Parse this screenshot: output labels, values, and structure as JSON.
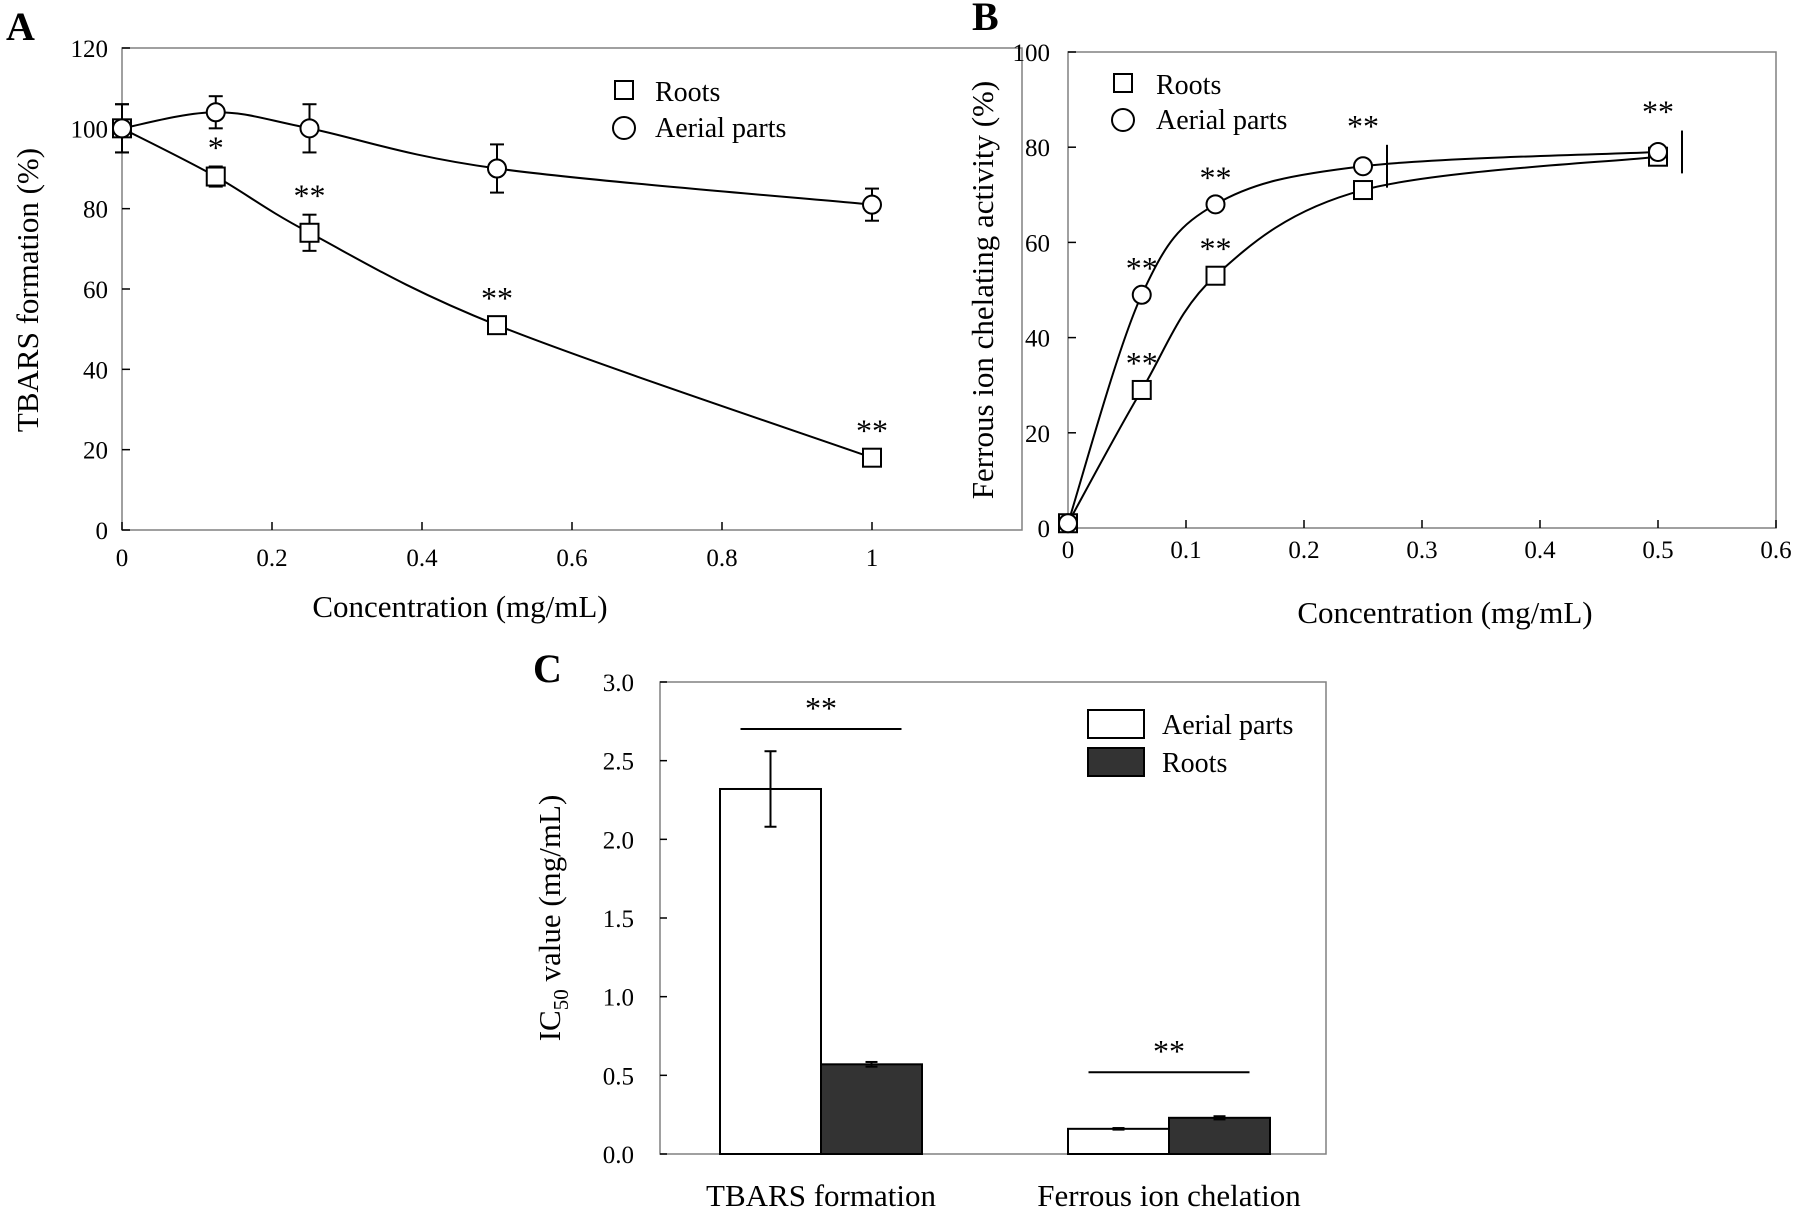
{
  "chart_data": [
    {
      "panel": "A",
      "type": "line",
      "xlabel": "Concentration (mg/mL)",
      "ylabel": "TBARS formation (%)",
      "xlim": [
        0,
        1.2
      ],
      "ylim": [
        0,
        120
      ],
      "xticks": [
        "0",
        "0.2",
        "0.4",
        "0.6",
        "0.8",
        "1"
      ],
      "xtick_values": [
        0,
        0.2,
        0.4,
        0.6,
        0.8,
        1.0
      ],
      "yticks": [
        "0",
        "20",
        "40",
        "60",
        "80",
        "100",
        "120"
      ],
      "ytick_values": [
        0,
        20,
        40,
        60,
        80,
        100,
        120
      ],
      "series": [
        {
          "name": "Roots",
          "marker": "square",
          "x": [
            0,
            0.125,
            0.25,
            0.5,
            1.0
          ],
          "y": [
            100,
            88,
            74,
            51,
            18
          ],
          "err": [
            6,
            2.5,
            4.5,
            2,
            0.5
          ],
          "sig": [
            "",
            "*",
            "**",
            "**",
            "**"
          ]
        },
        {
          "name": "Aerial parts",
          "marker": "circle",
          "x": [
            0,
            0.125,
            0.25,
            0.5,
            1.0
          ],
          "y": [
            100,
            104,
            100,
            90,
            81
          ],
          "err": [
            6,
            4,
            6,
            6,
            4
          ],
          "sig": [
            "",
            "",
            "",
            "",
            ""
          ]
        }
      ],
      "legend": [
        "Roots",
        "Aerial parts"
      ]
    },
    {
      "panel": "B",
      "type": "line",
      "xlabel": "Concentration (mg/mL)",
      "ylabel": "Ferrous ion chelating activity (%)",
      "xlim": [
        0,
        0.6
      ],
      "ylim": [
        0,
        100
      ],
      "xticks": [
        "0",
        "0.1",
        "0.2",
        "0.3",
        "0.4",
        "0.5",
        "0.6"
      ],
      "xtick_values": [
        0,
        0.1,
        0.2,
        0.3,
        0.4,
        0.5,
        0.6
      ],
      "yticks": [
        "0",
        "20",
        "40",
        "60",
        "80",
        "100"
      ],
      "ytick_values": [
        0,
        20,
        40,
        60,
        80,
        100
      ],
      "series": [
        {
          "name": "Roots",
          "marker": "square",
          "x": [
            0,
            0.0625,
            0.125,
            0.25,
            0.5
          ],
          "y": [
            1,
            29,
            53,
            71,
            78
          ],
          "err": [
            0,
            0,
            0,
            0,
            0
          ],
          "sig": [
            "",
            "**",
            "**",
            "",
            ""
          ]
        },
        {
          "name": "Aerial parts",
          "marker": "circle",
          "x": [
            0,
            0.0625,
            0.125,
            0.25,
            0.5
          ],
          "y": [
            1,
            49,
            68,
            76,
            79
          ],
          "err": [
            0,
            0,
            0,
            4.5,
            4.5
          ],
          "sig": [
            "",
            "**",
            "**",
            "**",
            "**"
          ]
        }
      ],
      "legend": [
        "Roots",
        "Aerial parts"
      ]
    },
    {
      "panel": "C",
      "type": "bar",
      "xlabel": "",
      "ylabel_main": "IC",
      "ylabel_sub": "50",
      "ylabel_rest": " value  (mg/mL)",
      "ylim": [
        0,
        3.0
      ],
      "yticks": [
        "0.0",
        "0.5",
        "1.0",
        "1.5",
        "2.0",
        "2.5",
        "3.0"
      ],
      "ytick_values": [
        0,
        0.5,
        1.0,
        1.5,
        2.0,
        2.5,
        3.0
      ],
      "categories": [
        "TBARS formation",
        "Ferrous ion chelation"
      ],
      "series": [
        {
          "name": "Aerial parts",
          "color": "#ffffff",
          "values": [
            2.32,
            0.16
          ],
          "err": [
            0.24,
            0.005
          ]
        },
        {
          "name": "Roots",
          "color": "#333333",
          "values": [
            0.57,
            0.23
          ],
          "err": [
            0.015,
            0.01
          ]
        }
      ],
      "significance": [
        "**",
        "**"
      ],
      "legend": [
        "Aerial parts",
        "Roots"
      ]
    }
  ]
}
